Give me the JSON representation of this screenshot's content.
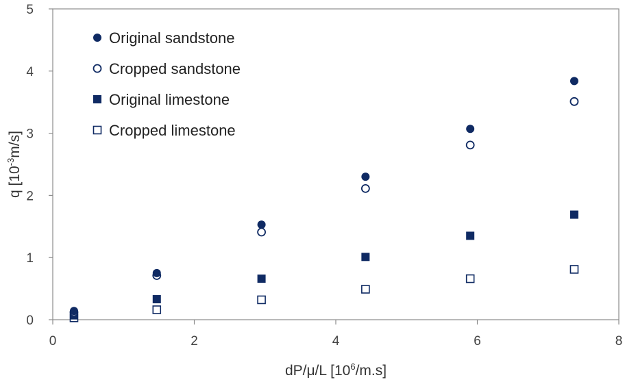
{
  "chart_data": {
    "type": "scatter",
    "xlabel": {
      "pre": "dP/μ/L [10",
      "sup": "6",
      "post": "/m.s]"
    },
    "ylabel": {
      "pre": "q [10",
      "sup": "-3",
      "post": "m/s]"
    },
    "xlim": [
      0,
      8
    ],
    "ylim": [
      0,
      5
    ],
    "x_ticks": [
      0,
      2,
      4,
      6,
      8
    ],
    "y_ticks": [
      0,
      1,
      2,
      3,
      4,
      5
    ],
    "grid": false,
    "legend_position": "top-left",
    "color": "#0f2a63",
    "series": [
      {
        "name": "Original sandstone",
        "marker": "circle-filled",
        "x": [
          0.3,
          1.47,
          2.95,
          4.42,
          5.9,
          7.37
        ],
        "y": [
          0.14,
          0.75,
          1.53,
          2.3,
          3.07,
          3.84
        ]
      },
      {
        "name": "Cropped sandstone",
        "marker": "circle-open",
        "x": [
          0.3,
          1.47,
          2.95,
          4.42,
          5.9,
          7.37
        ],
        "y": [
          0.12,
          0.71,
          1.41,
          2.11,
          2.81,
          3.51
        ]
      },
      {
        "name": "Original limestone",
        "marker": "square-filled",
        "x": [
          0.3,
          1.47,
          2.95,
          4.42,
          5.9,
          7.37
        ],
        "y": [
          0.07,
          0.33,
          0.66,
          1.01,
          1.35,
          1.69
        ]
      },
      {
        "name": "Cropped limestone",
        "marker": "square-open",
        "x": [
          0.3,
          1.47,
          2.95,
          4.42,
          5.9,
          7.37
        ],
        "y": [
          0.03,
          0.16,
          0.32,
          0.49,
          0.66,
          0.81
        ]
      }
    ]
  }
}
